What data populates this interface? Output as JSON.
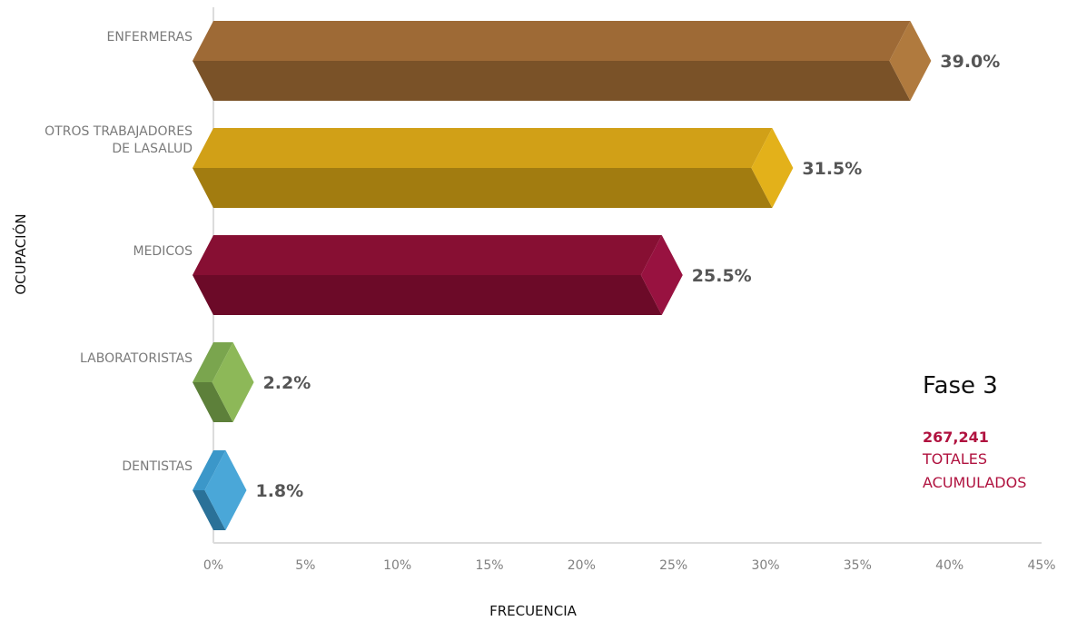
{
  "chart_data": {
    "type": "bar",
    "orientation": "horizontal",
    "style": "3d-prism",
    "categories": [
      [
        "ENFERMERAS"
      ],
      [
        "OTROS TRABAJADORES",
        "DE LASALUD"
      ],
      [
        "MEDICOS"
      ],
      [
        "LABORATORISTAS"
      ],
      [
        "DENTISTAS"
      ]
    ],
    "values": [
      39.0,
      31.5,
      25.5,
      2.2,
      1.8
    ],
    "value_labels": [
      "39.0%",
      "31.5%",
      "25.5%",
      "2.2%",
      "1.8%"
    ],
    "colors": [
      "#9e6a36",
      "#d1a017",
      "#870f33",
      "#7aa54e",
      "#3b97c9"
    ],
    "top_colors": [
      "#9e6a36",
      "#d1a017",
      "#870f33",
      "#7aa54e",
      "#3b97c9"
    ],
    "bottom_colors": [
      "#7a5228",
      "#a27c10",
      "#6c0a28",
      "#5d803a",
      "#2a7198"
    ],
    "cap_colors": [
      "#b07a3e",
      "#e3b11a",
      "#981240",
      "#8db858",
      "#4aa7d8"
    ],
    "xlim": [
      0,
      45
    ],
    "xticks": [
      "0%",
      "5%",
      "10%",
      "15%",
      "20%",
      "25%",
      "30%",
      "35%",
      "40%",
      "45%"
    ],
    "xlabel": "FRECUENCIA",
    "ylabel": "OCUPACIÓN"
  },
  "annotation": {
    "phase": "Fase 3",
    "total": "267,241",
    "line1": "TOTALES",
    "line2": "ACUMULADOS",
    "color": "#b0123f"
  }
}
